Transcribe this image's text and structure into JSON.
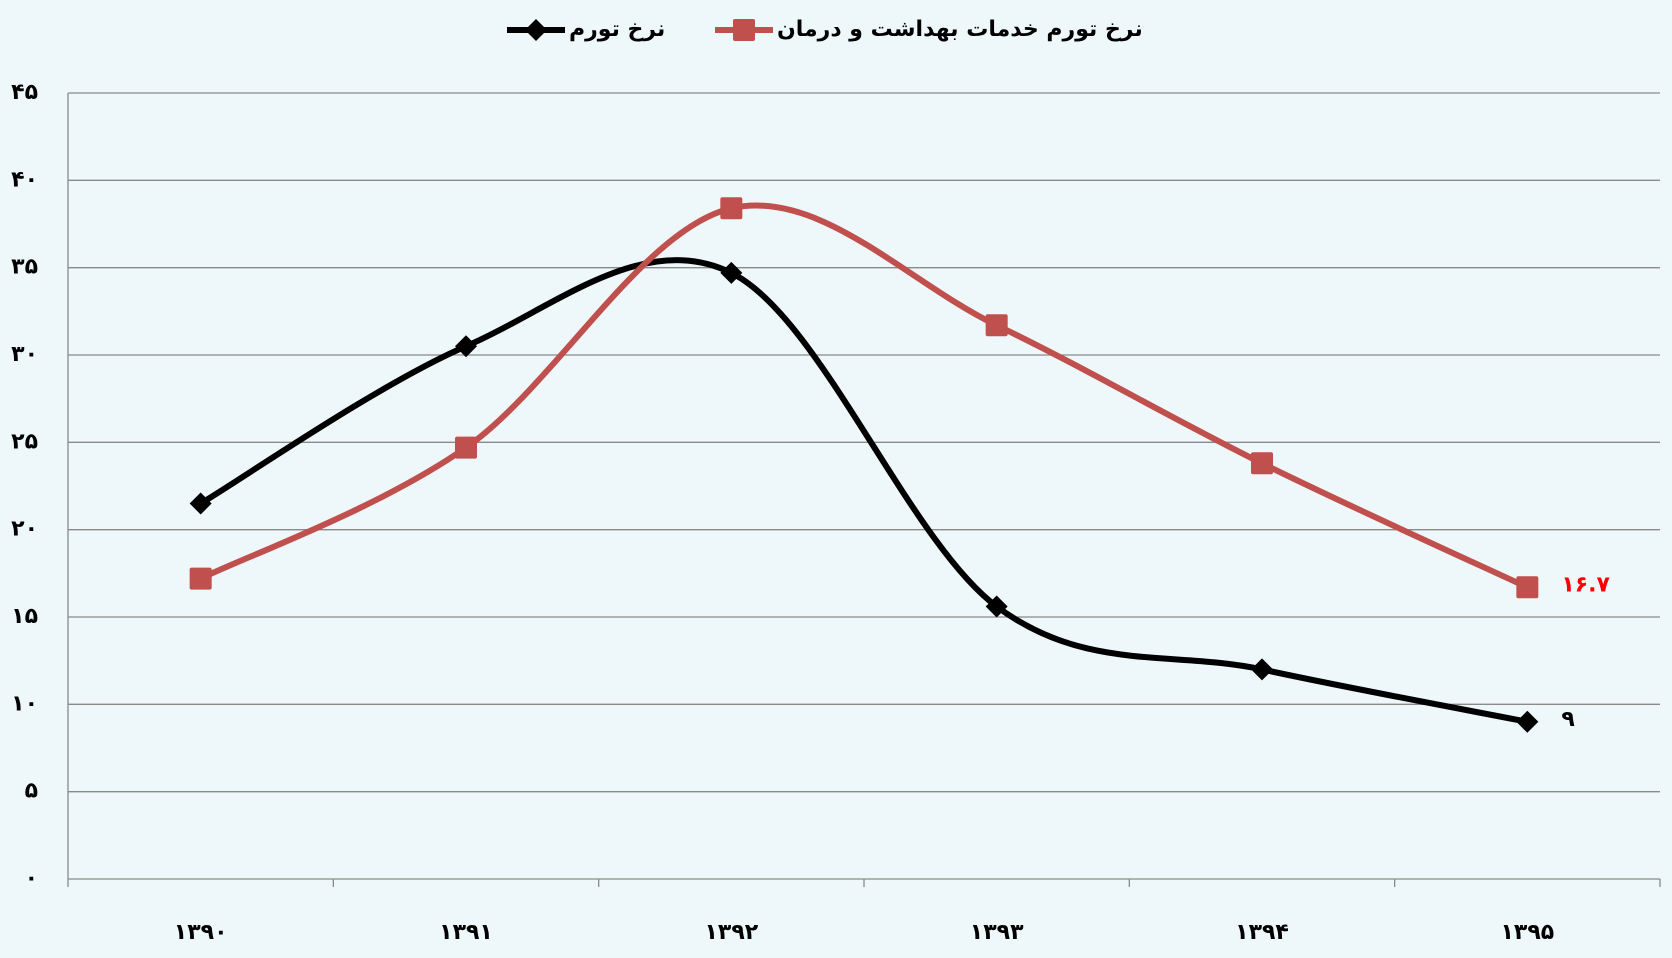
{
  "chart_data": {
    "type": "line",
    "categories": [
      "۱۳۹۰",
      "۱۳۹۱",
      "۱۳۹۲",
      "۱۳۹۳",
      "۱۳۹۴",
      "۱۳۹۵"
    ],
    "series": [
      {
        "name": "نرخ تورم",
        "color": "#000000",
        "marker": "diamond",
        "values": [
          21.5,
          30.5,
          34.7,
          15.6,
          12.0,
          9.0
        ],
        "value_labels": [
          null,
          null,
          null,
          null,
          null,
          "۹"
        ],
        "label_color": "#000000"
      },
      {
        "name": "نرخ تورم خدمات بهداشت و درمان",
        "color": "#c0504d",
        "marker": "square",
        "values": [
          17.2,
          24.7,
          38.4,
          31.7,
          23.8,
          16.7
        ],
        "value_labels": [
          null,
          null,
          null,
          null,
          null,
          "۱۶.۷"
        ],
        "label_color": "#ff0000"
      }
    ],
    "ylim": [
      0,
      45
    ],
    "yticks": [
      {
        "value": 0,
        "label": "۰"
      },
      {
        "value": 5,
        "label": "۵"
      },
      {
        "value": 10,
        "label": "۱۰"
      },
      {
        "value": 15,
        "label": "۱۵"
      },
      {
        "value": 20,
        "label": "۲۰"
      },
      {
        "value": 25,
        "label": "۲۵"
      },
      {
        "value": 30,
        "label": "۳۰"
      },
      {
        "value": 35,
        "label": "۳۵"
      },
      {
        "value": 40,
        "label": "۴۰"
      },
      {
        "value": 45,
        "label": "۴۵"
      }
    ],
    "grid": true,
    "smooth": true,
    "legend": "top"
  }
}
